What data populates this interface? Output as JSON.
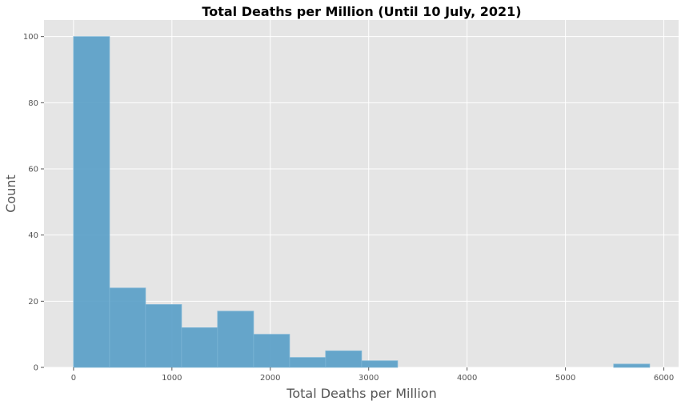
{
  "chart_data": {
    "type": "bar",
    "subtype": "histogram",
    "title": "Total Deaths per Million (Until 10 July, 2021)",
    "xlabel": "Total Deaths per Million",
    "ylabel": "Count",
    "xlim": [
      -300,
      6150
    ],
    "ylim": [
      0,
      105
    ],
    "xticks": [
      0,
      1000,
      2000,
      3000,
      4000,
      5000,
      6000
    ],
    "yticks": [
      0,
      20,
      40,
      60,
      80,
      100
    ],
    "grid": true,
    "bin_edges": [
      0,
      366,
      732,
      1098,
      1464,
      1830,
      2196,
      2562,
      2928,
      3294,
      3660,
      4026,
      4392,
      4758,
      5124,
      5490,
      5856
    ],
    "values": [
      100,
      24,
      19,
      12,
      17,
      10,
      3,
      5,
      2,
      0,
      0,
      0,
      0,
      0,
      0,
      1
    ],
    "colors": {
      "bar_fill": "#5aa0c8",
      "bar_stroke": "#7fb6d6",
      "plot_bg": "#e5e5e5",
      "grid": "#ffffff"
    }
  }
}
